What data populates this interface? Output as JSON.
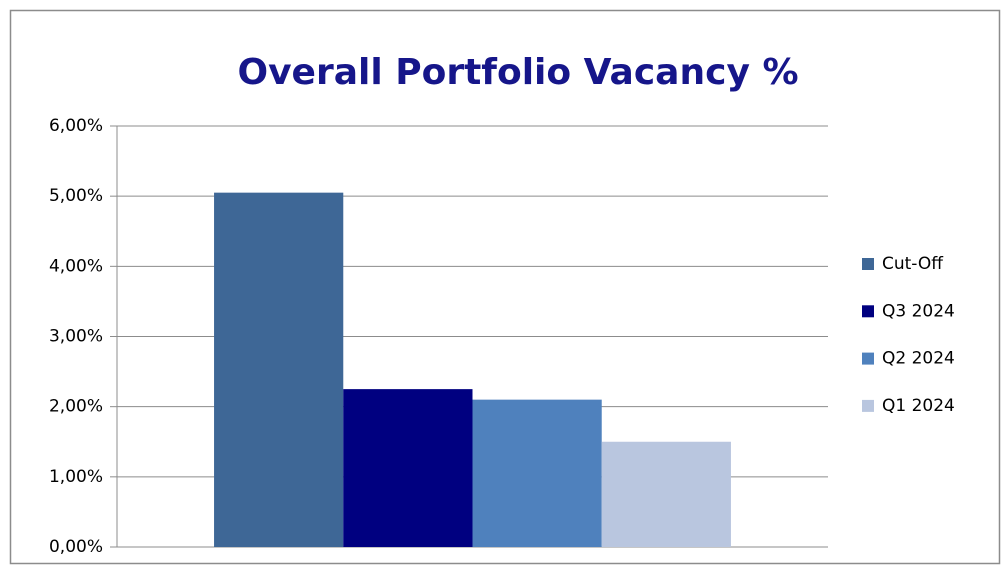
{
  "chart_data": {
    "type": "bar",
    "title": "Overall Portfolio Vacancy %",
    "series": [
      {
        "name": "Cut-Off",
        "color": "#3e6796",
        "values": [
          5.05
        ]
      },
      {
        "name": "Q3 2024",
        "color": "#000080",
        "values": [
          2.25
        ]
      },
      {
        "name": "Q2 2024",
        "color": "#4f81bd",
        "values": [
          2.1
        ]
      },
      {
        "name": "Q1 2024",
        "color": "#b9c6df",
        "values": [
          1.5
        ]
      }
    ],
    "ylim": [
      0,
      6
    ],
    "yticks": [
      {
        "value": 0,
        "label": "0,00%"
      },
      {
        "value": 1,
        "label": "1,00%"
      },
      {
        "value": 2,
        "label": "2,00%"
      },
      {
        "value": 3,
        "label": "3,00%"
      },
      {
        "value": 4,
        "label": "4,00%"
      },
      {
        "value": 5,
        "label": "5,00%"
      },
      {
        "value": 6,
        "label": "6,00%"
      }
    ],
    "grid": true,
    "legend": "right"
  }
}
